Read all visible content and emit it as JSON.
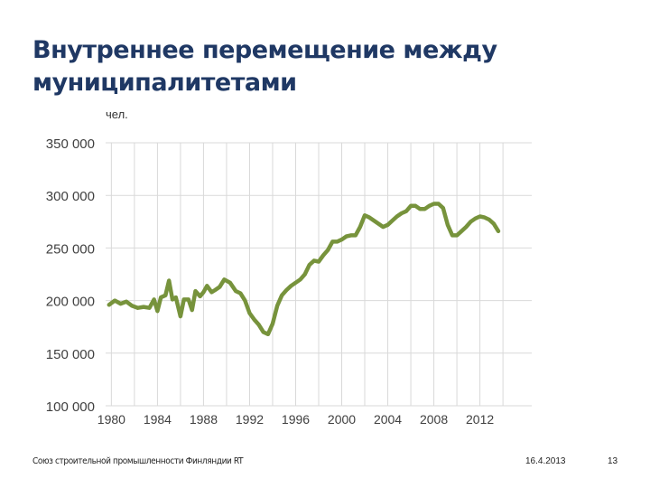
{
  "slide": {
    "title_line1": "Внутреннее перемещение между",
    "title_line2": "муниципалитетами",
    "footer_org": "Союз строительной промышленности Финляндии RT",
    "footer_date": "16.4.2013",
    "page_number": "13"
  },
  "colors": {
    "line": "#77933c",
    "grid": "#d9d9d9",
    "title": "#1f3864"
  },
  "chart_data": {
    "type": "line",
    "title": "",
    "xlabel": "",
    "ylabel": "чел.",
    "xlim": [
      1979.5,
      2016.5
    ],
    "ylim": [
      100000,
      350000
    ],
    "x_ticks": [
      1980,
      1984,
      1988,
      1992,
      1996,
      2000,
      2004,
      2008,
      2012
    ],
    "x_tick_labels": [
      "1980",
      "1984",
      "1988",
      "1992",
      "1996",
      "2000",
      "2004",
      "2008",
      "2012"
    ],
    "y_ticks": [
      100000,
      150000,
      200000,
      250000,
      300000,
      350000
    ],
    "y_tick_labels": [
      "100 000",
      "150 000",
      "200 000",
      "250 000",
      "300 000",
      "350 000"
    ],
    "grid": true,
    "x": [
      1979.8,
      1980.3,
      1980.8,
      1981.3,
      1981.8,
      1982.3,
      1982.8,
      1983.3,
      1983.7,
      1984.0,
      1984.3,
      1984.7,
      1985.0,
      1985.3,
      1985.6,
      1986.0,
      1986.3,
      1986.7,
      1987.0,
      1987.3,
      1987.7,
      1988.0,
      1988.3,
      1988.7,
      1989.0,
      1989.4,
      1989.8,
      1990.3,
      1990.8,
      1991.2,
      1991.6,
      1992.0,
      1992.4,
      1992.8,
      1993.2,
      1993.6,
      1994.0,
      1994.4,
      1994.8,
      1995.2,
      1995.6,
      1996.0,
      1996.4,
      1996.8,
      1997.2,
      1997.6,
      1998.0,
      1998.4,
      1998.8,
      1999.2,
      1999.6,
      2000.0,
      2000.4,
      2000.8,
      2001.2,
      2001.6,
      2002.0,
      2002.4,
      2002.8,
      2003.2,
      2003.6,
      2004.0,
      2004.4,
      2004.8,
      2005.2,
      2005.6,
      2006.0,
      2006.4,
      2006.8,
      2007.2,
      2007.6,
      2008.0,
      2008.4,
      2008.8,
      2009.2,
      2009.6,
      2010.0,
      2010.4,
      2010.8,
      2011.2,
      2011.6,
      2012.0,
      2012.4,
      2012.8,
      2013.2,
      2013.6
    ],
    "series": [
      {
        "values": [
          196000,
          200000,
          197000,
          199000,
          195000,
          193000,
          194000,
          193000,
          201000,
          190000,
          203000,
          205000,
          219000,
          201000,
          203000,
          185000,
          201000,
          201000,
          191000,
          209000,
          204000,
          208000,
          214000,
          208000,
          210000,
          213000,
          220000,
          217000,
          209000,
          207000,
          200000,
          188000,
          182000,
          177000,
          170000,
          168000,
          178000,
          195000,
          205000,
          210000,
          214000,
          217000,
          220000,
          225000,
          234000,
          238000,
          237000,
          243000,
          248000,
          256000,
          256000,
          258000,
          261000,
          262000,
          262000,
          270000,
          281000,
          279000,
          276000,
          273000,
          270000,
          272000,
          276000,
          280000,
          283000,
          285000,
          290000,
          290000,
          287000,
          287000,
          290000,
          292000,
          292000,
          288000,
          272000,
          262000,
          262000,
          266000,
          270000,
          275000,
          278000,
          280000,
          279000,
          277000,
          273000,
          266000
        ]
      }
    ]
  }
}
